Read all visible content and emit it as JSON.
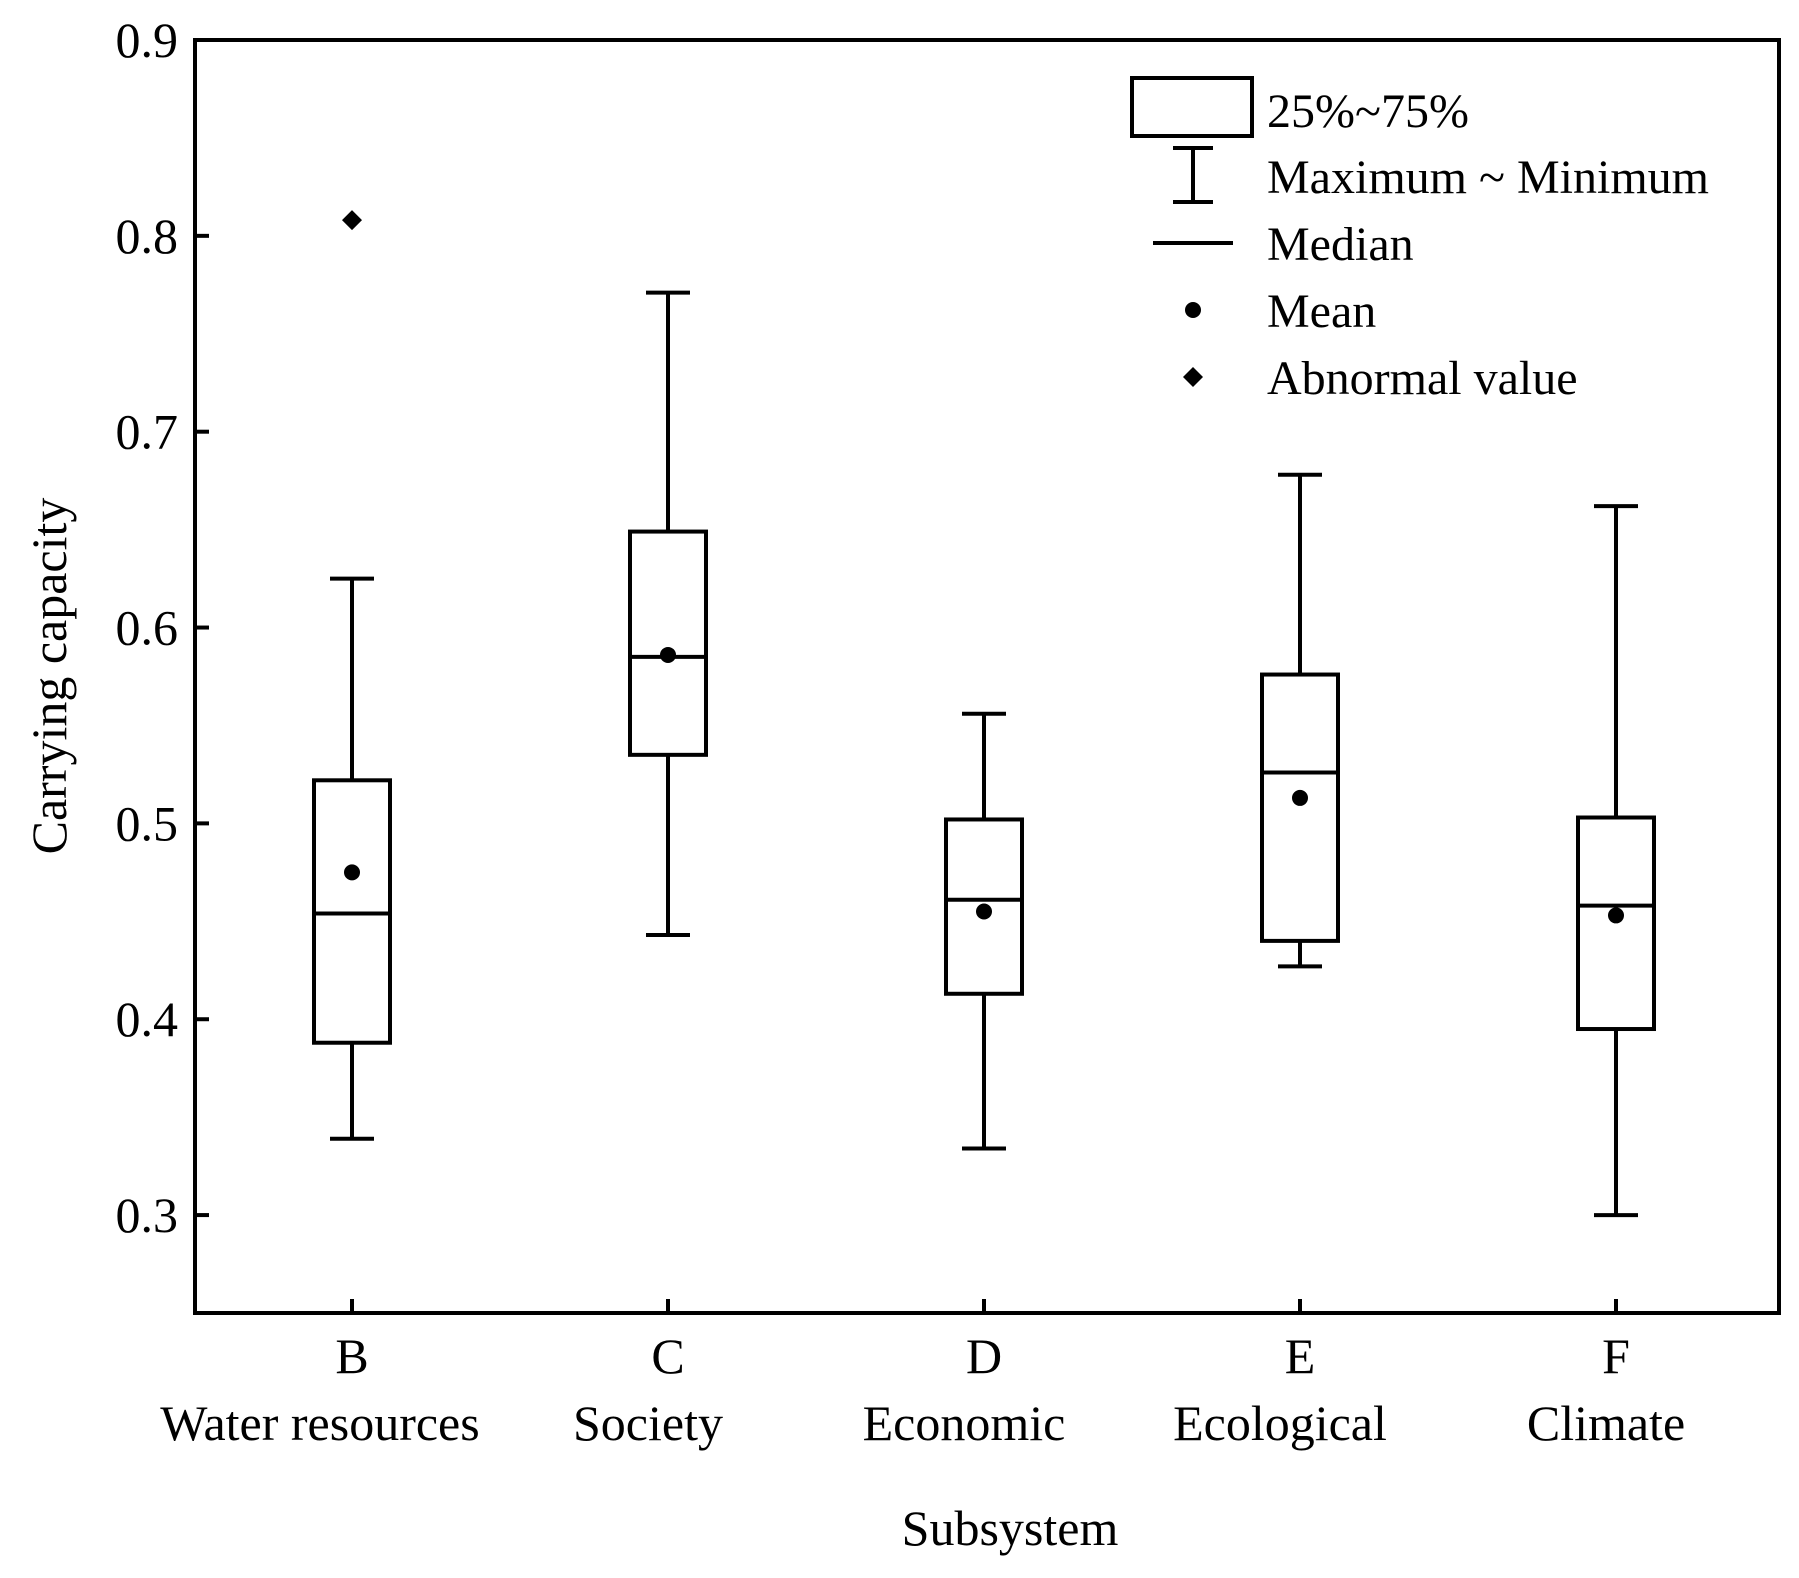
{
  "chart_data": {
    "type": "box",
    "xlabel": "Subsystem",
    "ylabel": "Carrying capacity",
    "ylim": [
      0.25,
      0.9
    ],
    "yticks": [
      "0.3",
      "0.4",
      "0.5",
      "0.6",
      "0.7",
      "0.8",
      "0.9"
    ],
    "categories": [
      {
        "code": "B",
        "name": "Water resources"
      },
      {
        "code": "C",
        "name": "Society"
      },
      {
        "code": "D",
        "name": "Economic"
      },
      {
        "code": "E",
        "name": "Ecological"
      },
      {
        "code": "F",
        "name": "Climate"
      }
    ],
    "boxes": [
      {
        "min": 0.339,
        "q1": 0.388,
        "median": 0.454,
        "q3": 0.522,
        "max": 0.625,
        "mean": 0.475,
        "outliers": [
          0.808
        ]
      },
      {
        "min": 0.443,
        "q1": 0.535,
        "median": 0.585,
        "q3": 0.649,
        "max": 0.771,
        "mean": 0.586,
        "outliers": []
      },
      {
        "min": 0.334,
        "q1": 0.413,
        "median": 0.461,
        "q3": 0.502,
        "max": 0.556,
        "mean": 0.455,
        "outliers": []
      },
      {
        "min": 0.427,
        "q1": 0.44,
        "median": 0.526,
        "q3": 0.576,
        "max": 0.678,
        "mean": 0.513,
        "outliers": []
      },
      {
        "min": 0.3,
        "q1": 0.395,
        "median": 0.458,
        "q3": 0.503,
        "max": 0.662,
        "mean": 0.453,
        "outliers": []
      }
    ],
    "legend": {
      "position": "top-right",
      "items": [
        {
          "symbol": "box",
          "label": "25%~75%"
        },
        {
          "symbol": "whisker",
          "label": "Maximum ~ Minimum"
        },
        {
          "symbol": "median-line",
          "label": "Median"
        },
        {
          "symbol": "mean-dot",
          "label": "Mean"
        },
        {
          "symbol": "outlier-diamond",
          "label": "Abnormal value"
        }
      ]
    },
    "grid": false,
    "colors": {
      "stroke": "#000000",
      "background": "#ffffff"
    }
  }
}
